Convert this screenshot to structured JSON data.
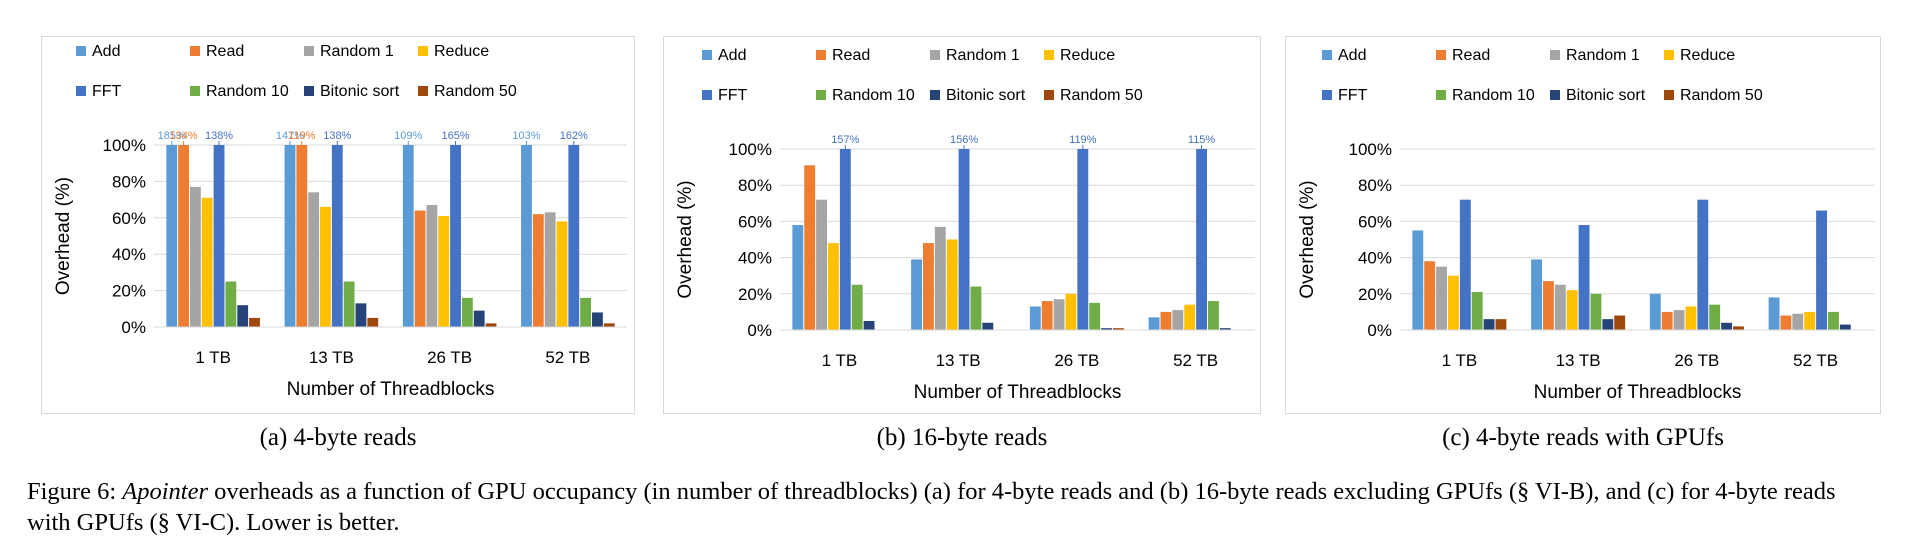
{
  "legend": [
    "Add",
    "Read",
    "Random 1",
    "Reduce",
    "FFT",
    "Random 10",
    "Bitonic sort",
    "Random 50"
  ],
  "colors": [
    "#5b9bd5",
    "#ed7d31",
    "#a5a5a5",
    "#ffc000",
    "#4472c4",
    "#70ad47",
    "#264478",
    "#9e480e"
  ],
  "chart_data": [
    {
      "type": "bar",
      "categories": [
        "1 TB",
        "13 TB",
        "26 TB",
        "52 TB"
      ],
      "xlabel": "Number of Threadblocks",
      "ylabel": "Overhead (%)",
      "ylim": [
        0,
        100
      ],
      "yticks": [
        "0%",
        "20%",
        "40%",
        "60%",
        "80%",
        "100%"
      ],
      "grid": true,
      "legend_position": "top",
      "series": [
        {
          "name": "Add",
          "values": [
            100,
            100,
            100,
            100
          ],
          "labels": [
            "185%",
            "147%",
            "109%",
            "103%"
          ]
        },
        {
          "name": "Read",
          "values": [
            100,
            100,
            64,
            62
          ],
          "labels": [
            "134%",
            "119%",
            null,
            null
          ]
        },
        {
          "name": "Random 1",
          "values": [
            77,
            74,
            67,
            63
          ]
        },
        {
          "name": "Reduce",
          "values": [
            71,
            66,
            61,
            58
          ]
        },
        {
          "name": "FFT",
          "values": [
            100,
            100,
            100,
            100
          ],
          "labels": [
            "138%",
            "138%",
            "165%",
            "162%"
          ]
        },
        {
          "name": "Random 10",
          "values": [
            25,
            25,
            16,
            16
          ]
        },
        {
          "name": "Bitonic sort",
          "values": [
            12,
            13,
            9,
            8
          ]
        },
        {
          "name": "Random 50",
          "values": [
            5,
            5,
            2,
            2
          ]
        }
      ]
    },
    {
      "type": "bar",
      "categories": [
        "1 TB",
        "13 TB",
        "26 TB",
        "52 TB"
      ],
      "xlabel": "Number of Threadblocks",
      "ylabel": "Overhead (%)",
      "ylim": [
        0,
        100
      ],
      "yticks": [
        "0%",
        "20%",
        "40%",
        "60%",
        "80%",
        "100%"
      ],
      "grid": true,
      "legend_position": "top",
      "series": [
        {
          "name": "Add",
          "values": [
            58,
            39,
            13,
            7
          ]
        },
        {
          "name": "Read",
          "values": [
            91,
            48,
            16,
            10
          ]
        },
        {
          "name": "Random 1",
          "values": [
            72,
            57,
            17,
            11
          ]
        },
        {
          "name": "Reduce",
          "values": [
            48,
            50,
            20,
            14
          ]
        },
        {
          "name": "FFT",
          "values": [
            100,
            100,
            100,
            100
          ],
          "labels": [
            "157%",
            "156%",
            "119%",
            "115%"
          ]
        },
        {
          "name": "Random 10",
          "values": [
            25,
            24,
            15,
            16
          ]
        },
        {
          "name": "Bitonic sort",
          "values": [
            5,
            4,
            1,
            1
          ]
        },
        {
          "name": "Random 50",
          "values": [
            0,
            0,
            1,
            0
          ]
        }
      ]
    },
    {
      "type": "bar",
      "categories": [
        "1 TB",
        "13 TB",
        "26 TB",
        "52 TB"
      ],
      "xlabel": "Number of Threadblocks",
      "ylabel": "Overhead (%)",
      "ylim": [
        0,
        100
      ],
      "yticks": [
        "0%",
        "20%",
        "40%",
        "60%",
        "80%",
        "100%"
      ],
      "grid": true,
      "legend_position": "top",
      "series": [
        {
          "name": "Add",
          "values": [
            55,
            39,
            20,
            18
          ]
        },
        {
          "name": "Read",
          "values": [
            38,
            27,
            10,
            8
          ]
        },
        {
          "name": "Random 1",
          "values": [
            35,
            25,
            11,
            9
          ]
        },
        {
          "name": "Reduce",
          "values": [
            30,
            22,
            13,
            10
          ]
        },
        {
          "name": "FFT",
          "values": [
            72,
            58,
            72,
            66
          ]
        },
        {
          "name": "Random 10",
          "values": [
            21,
            20,
            14,
            10
          ]
        },
        {
          "name": "Bitonic sort",
          "values": [
            6,
            6,
            4,
            3
          ]
        },
        {
          "name": "Random 50",
          "values": [
            6,
            8,
            2,
            0
          ]
        }
      ]
    }
  ],
  "subcaptions": [
    "(a) 4-byte reads",
    "(b) 16-byte reads",
    "(c) 4-byte reads with GPUfs"
  ],
  "figure_caption": {
    "prefix": "Figure 6: ",
    "emph": "Apointer",
    "rest": " overheads as a function of GPU occupancy (in number of threadblocks) (a) for 4-byte reads and (b) 16-byte reads excluding GPUfs (§ VI-B), and (c) for 4-byte reads with GPUfs (§ VI-C). Lower is better."
  }
}
